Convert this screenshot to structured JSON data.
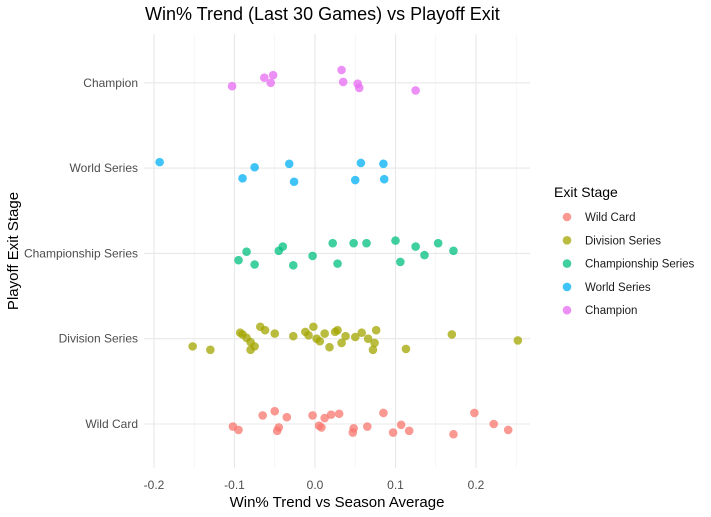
{
  "chart_data": {
    "type": "scatter",
    "title": "Win% Trend (Last 30 Games) vs Playoff Exit",
    "xlabel": "Win% Trend vs Season Average",
    "ylabel": "Playoff Exit Stage",
    "xlim": [
      -0.2,
      0.25
    ],
    "xticks": [
      -0.2,
      -0.1,
      0.0,
      0.1,
      0.2
    ],
    "xtick_labels": [
      "-0.2",
      "-0.1",
      "0.0",
      "0.1",
      "0.2"
    ],
    "categories": [
      "Wild Card",
      "Division Series",
      "Championship Series",
      "World Series",
      "Champion"
    ],
    "grid": true,
    "legend": {
      "title": "Exit Stage",
      "position": "right"
    },
    "series": [
      {
        "name": "Wild Card",
        "color": "#F8766D",
        "points": [
          {
            "x": -0.102,
            "y": -0.03
          },
          {
            "x": -0.095,
            "y": -0.07
          },
          {
            "x": -0.065,
            "y": 0.1
          },
          {
            "x": -0.05,
            "y": 0.15
          },
          {
            "x": -0.045,
            "y": -0.04
          },
          {
            "x": -0.047,
            "y": -0.08
          },
          {
            "x": -0.035,
            "y": 0.08
          },
          {
            "x": -0.003,
            "y": 0.1
          },
          {
            "x": 0.005,
            "y": -0.02
          },
          {
            "x": 0.008,
            "y": -0.04
          },
          {
            "x": 0.012,
            "y": 0.07
          },
          {
            "x": 0.02,
            "y": 0.11
          },
          {
            "x": 0.03,
            "y": 0.12
          },
          {
            "x": 0.048,
            "y": -0.05
          },
          {
            "x": 0.047,
            "y": -0.1
          },
          {
            "x": 0.065,
            "y": -0.03
          },
          {
            "x": 0.085,
            "y": 0.13
          },
          {
            "x": 0.097,
            "y": -0.1
          },
          {
            "x": 0.107,
            "y": -0.01
          },
          {
            "x": 0.117,
            "y": -0.08
          },
          {
            "x": 0.172,
            "y": -0.12
          },
          {
            "x": 0.198,
            "y": 0.13
          },
          {
            "x": 0.222,
            "y": 0.0
          },
          {
            "x": 0.24,
            "y": -0.07
          }
        ]
      },
      {
        "name": "Division Series",
        "color": "#A3A500",
        "points": [
          {
            "x": -0.152,
            "y": -0.09
          },
          {
            "x": -0.13,
            "y": -0.13
          },
          {
            "x": -0.093,
            "y": 0.07
          },
          {
            "x": -0.09,
            "y": 0.05
          },
          {
            "x": -0.085,
            "y": 0.01
          },
          {
            "x": -0.08,
            "y": -0.04
          },
          {
            "x": -0.08,
            "y": -0.13
          },
          {
            "x": -0.075,
            "y": -0.09
          },
          {
            "x": -0.068,
            "y": 0.14
          },
          {
            "x": -0.062,
            "y": 0.1
          },
          {
            "x": -0.05,
            "y": 0.06
          },
          {
            "x": -0.027,
            "y": 0.03
          },
          {
            "x": -0.012,
            "y": 0.08
          },
          {
            "x": -0.008,
            "y": 0.04
          },
          {
            "x": -0.002,
            "y": 0.14
          },
          {
            "x": 0.002,
            "y": 0.0
          },
          {
            "x": 0.006,
            "y": -0.03
          },
          {
            "x": 0.012,
            "y": 0.06
          },
          {
            "x": 0.018,
            "y": -0.1
          },
          {
            "x": 0.025,
            "y": 0.08
          },
          {
            "x": 0.028,
            "y": 0.1
          },
          {
            "x": 0.033,
            "y": -0.05
          },
          {
            "x": 0.038,
            "y": 0.03
          },
          {
            "x": 0.05,
            "y": 0.02
          },
          {
            "x": 0.058,
            "y": 0.07
          },
          {
            "x": 0.066,
            "y": 0.0
          },
          {
            "x": 0.072,
            "y": -0.13
          },
          {
            "x": 0.074,
            "y": -0.05
          },
          {
            "x": 0.076,
            "y": 0.1
          },
          {
            "x": 0.113,
            "y": -0.12
          },
          {
            "x": 0.17,
            "y": 0.05
          },
          {
            "x": 0.252,
            "y": -0.02
          }
        ]
      },
      {
        "name": "Championship Series",
        "color": "#00BF7D",
        "points": [
          {
            "x": -0.095,
            "y": -0.08
          },
          {
            "x": -0.085,
            "y": 0.02
          },
          {
            "x": -0.075,
            "y": -0.13
          },
          {
            "x": -0.045,
            "y": 0.03
          },
          {
            "x": -0.04,
            "y": 0.08
          },
          {
            "x": -0.027,
            "y": -0.14
          },
          {
            "x": -0.003,
            "y": -0.03
          },
          {
            "x": 0.022,
            "y": 0.12
          },
          {
            "x": 0.028,
            "y": -0.12
          },
          {
            "x": 0.048,
            "y": 0.12
          },
          {
            "x": 0.064,
            "y": 0.12
          },
          {
            "x": 0.1,
            "y": 0.15
          },
          {
            "x": 0.106,
            "y": -0.1
          },
          {
            "x": 0.125,
            "y": 0.08
          },
          {
            "x": 0.136,
            "y": -0.02
          },
          {
            "x": 0.153,
            "y": 0.12
          },
          {
            "x": 0.172,
            "y": 0.03
          }
        ]
      },
      {
        "name": "World Series",
        "color": "#00B0F6",
        "points": [
          {
            "x": -0.193,
            "y": 0.07
          },
          {
            "x": -0.09,
            "y": -0.12
          },
          {
            "x": -0.075,
            "y": 0.01
          },
          {
            "x": -0.032,
            "y": 0.05
          },
          {
            "x": -0.026,
            "y": -0.16
          },
          {
            "x": 0.05,
            "y": -0.14
          },
          {
            "x": 0.057,
            "y": 0.06
          },
          {
            "x": 0.085,
            "y": 0.05
          },
          {
            "x": 0.086,
            "y": -0.13
          }
        ]
      },
      {
        "name": "Champion",
        "color": "#E76BF3",
        "points": [
          {
            "x": -0.103,
            "y": -0.04
          },
          {
            "x": -0.063,
            "y": 0.06
          },
          {
            "x": -0.055,
            "y": 0.0
          },
          {
            "x": -0.052,
            "y": 0.09
          },
          {
            "x": 0.033,
            "y": 0.15
          },
          {
            "x": 0.035,
            "y": 0.01
          },
          {
            "x": 0.053,
            "y": -0.01
          },
          {
            "x": 0.055,
            "y": -0.06
          },
          {
            "x": 0.125,
            "y": -0.09
          }
        ]
      }
    ]
  }
}
